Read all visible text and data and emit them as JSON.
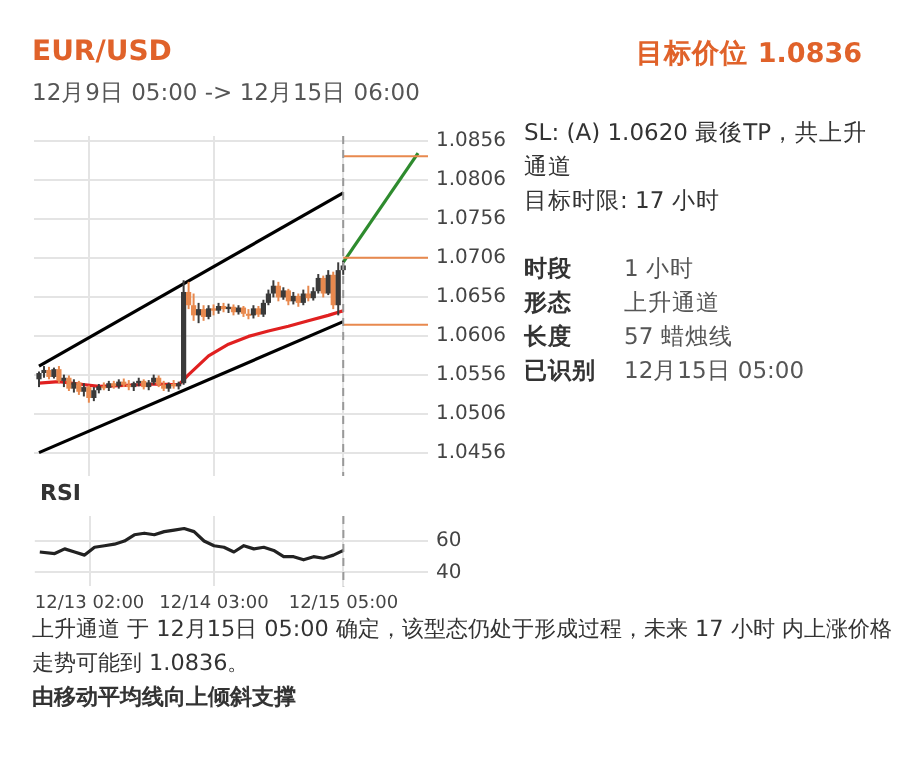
{
  "chart_data": [
    {
      "type": "candlestick",
      "title": "EUR/USD",
      "subtitle": "12月9日 05:00 -> 12月15日 06:00",
      "annotations": [
        "目标价位 1.0836",
        "SL: (A) 1.0620 最後TP，共上升通道",
        "目标时限: 17 小时",
        "时段",
        "1 小时",
        "形态",
        "上升通道",
        "长度",
        "57 蜡烛线",
        "已识别",
        "12月15日 05:00",
        "上升通道 于 12月15日 05:00 确定，该型态仍处于形成过程，未来 17 小时 内上涨价格走势可能到 1.0836。",
        "由移动平均线向上倾斜支撑"
      ],
      "x": [
        "--12-12T16:00",
        "--12-12T17:00",
        "--12-12T18:00",
        "--12-12T19:00",
        "--12-12T20:00",
        "--12-12T21:00",
        "--12-12T22:00",
        "--12-12T23:00",
        "--12-13T00:00",
        "--12-13T01:00",
        "--12-13T02:00",
        "--12-13T03:00",
        "--12-13T04:00",
        "--12-13T05:00",
        "--12-13T06:00",
        "--12-13T07:00",
        "--12-13T08:00",
        "--12-13T09:00",
        "--12-13T10:00",
        "--12-13T11:00",
        "--12-13T12:00",
        "--12-13T13:00",
        "--12-13T14:00",
        "--12-13T15:00",
        "--12-13T16:00",
        "--12-13T17:00",
        "--12-13T18:00",
        "--12-13T19:00",
        "--12-13T20:00",
        "--12-13T21:00",
        "--12-13T22:00",
        "--12-13T23:00",
        "--12-14T00:00",
        "--12-14T01:00",
        "--12-14T02:00",
        "--12-14T03:00",
        "--12-14T04:00",
        "--12-14T05:00",
        "--12-14T06:00",
        "--12-14T07:00",
        "--12-14T08:00",
        "--12-14T09:00",
        "--12-14T10:00",
        "--12-14T11:00",
        "--12-14T12:00",
        "--12-14T13:00",
        "--12-14T14:00",
        "--12-14T15:00",
        "--12-14T16:00",
        "--12-14T17:00",
        "--12-14T18:00",
        "--12-14T19:00",
        "--12-14T20:00",
        "--12-14T21:00",
        "--12-14T22:00",
        "--12-14T23:00",
        "--12-15T00:00",
        "--12-15T01:00",
        "--12-15T02:00",
        "--12-15T03:00",
        "--12-15T04:00",
        "--12-15T05:00"
      ],
      "ohlc": [
        [
          1.055,
          1.056,
          1.054,
          1.0558
        ],
        [
          1.0558,
          1.0567,
          1.0552,
          1.0562
        ],
        [
          1.0562,
          1.0566,
          1.055,
          1.0553
        ],
        [
          1.0553,
          1.0565,
          1.0551,
          1.0563
        ],
        [
          1.0563,
          1.0567,
          1.0545,
          1.0548
        ],
        [
          1.0548,
          1.0556,
          1.054,
          1.0552
        ],
        [
          1.0552,
          1.0555,
          1.0535,
          1.0538
        ],
        [
          1.0538,
          1.055,
          1.0533,
          1.0546
        ],
        [
          1.0546,
          1.0548,
          1.053,
          1.0534
        ],
        [
          1.0534,
          1.0545,
          1.0528,
          1.054
        ],
        [
          1.054,
          1.0542,
          1.052,
          1.0526
        ],
        [
          1.0526,
          1.054,
          1.0522,
          1.0536
        ],
        [
          1.0536,
          1.0544,
          1.0532,
          1.0541
        ],
        [
          1.0541,
          1.0546,
          1.0536,
          1.0539
        ],
        [
          1.0539,
          1.0548,
          1.0535,
          1.0545
        ],
        [
          1.0545,
          1.0548,
          1.0538,
          1.0541
        ],
        [
          1.0541,
          1.055,
          1.0538,
          1.0547
        ],
        [
          1.0547,
          1.0551,
          1.054,
          1.0543
        ],
        [
          1.0543,
          1.0549,
          1.0536,
          1.054
        ],
        [
          1.054,
          1.0547,
          1.0535,
          1.0545
        ],
        [
          1.0545,
          1.0552,
          1.0541,
          1.0548
        ],
        [
          1.0548,
          1.055,
          1.0537,
          1.054
        ],
        [
          1.054,
          1.0549,
          1.0536,
          1.0546
        ],
        [
          1.0546,
          1.0556,
          1.0543,
          1.0552
        ],
        [
          1.0552,
          1.0555,
          1.054,
          1.0543
        ],
        [
          1.0543,
          1.0548,
          1.0535,
          1.0538
        ],
        [
          1.0538,
          1.0546,
          1.0534,
          1.0544
        ],
        [
          1.0544,
          1.0549,
          1.0538,
          1.0541
        ],
        [
          1.0541,
          1.0547,
          1.0537,
          1.0545
        ],
        [
          1.0545,
          1.0677,
          1.0543,
          1.0662
        ],
        [
          1.0662,
          1.0675,
          1.064,
          1.0645
        ],
        [
          1.0645,
          1.066,
          1.0625,
          1.0632
        ],
        [
          1.0632,
          1.0648,
          1.0622,
          1.064
        ],
        [
          1.064,
          1.0645,
          1.0625,
          1.063
        ],
        [
          1.063,
          1.0645,
          1.0627,
          1.0641
        ],
        [
          1.0641,
          1.0646,
          1.0632,
          1.0638
        ],
        [
          1.0638,
          1.0648,
          1.0634,
          1.0644
        ],
        [
          1.0644,
          1.0648,
          1.0636,
          1.064
        ],
        [
          1.064,
          1.0647,
          1.0635,
          1.0643
        ],
        [
          1.0643,
          1.0646,
          1.0632,
          1.0636
        ],
        [
          1.0636,
          1.0645,
          1.0633,
          1.0642
        ],
        [
          1.0642,
          1.0644,
          1.063,
          1.0634
        ],
        [
          1.0634,
          1.064,
          1.0627,
          1.0632
        ],
        [
          1.0632,
          1.0645,
          1.0628,
          1.0641
        ],
        [
          1.0641,
          1.0644,
          1.063,
          1.0633
        ],
        [
          1.0633,
          1.0652,
          1.063,
          1.0648
        ],
        [
          1.0648,
          1.0665,
          1.0645,
          1.066
        ],
        [
          1.066,
          1.0677,
          1.0655,
          1.067
        ],
        [
          1.067,
          1.0675,
          1.065,
          1.0655
        ],
        [
          1.0655,
          1.0668,
          1.0652,
          1.0664
        ],
        [
          1.0664,
          1.0666,
          1.0645,
          1.065
        ],
        [
          1.065,
          1.0662,
          1.0646,
          1.0657
        ],
        [
          1.0657,
          1.066,
          1.0643,
          1.0648
        ],
        [
          1.0648,
          1.0665,
          1.0645,
          1.066
        ],
        [
          1.066,
          1.067,
          1.065,
          1.0654
        ],
        [
          1.0654,
          1.0668,
          1.0651,
          1.0663
        ],
        [
          1.0663,
          1.0685,
          1.066,
          1.068
        ],
        [
          1.068,
          1.0683,
          1.0655,
          1.066
        ],
        [
          1.066,
          1.069,
          1.0658,
          1.0684
        ],
        [
          1.0684,
          1.0688,
          1.064,
          1.0645
        ],
        [
          1.0645,
          1.07,
          1.0632,
          1.069
        ],
        [
          1.069,
          1.0702,
          1.0684,
          1.0696
        ]
      ],
      "colors": [
        "#3a3a3a",
        "#3a3a3a",
        "#e8894e",
        "#3a3a3a",
        "#e8894e",
        "#3a3a3a",
        "#e8894e",
        "#3a3a3a",
        "#e8894e",
        "#3a3a3a",
        "#e8894e",
        "#3a3a3a",
        "#3a3a3a",
        "#e8894e",
        "#3a3a3a",
        "#e8894e",
        "#3a3a3a",
        "#e8894e",
        "#e8894e",
        "#3a3a3a",
        "#3a3a3a",
        "#e8894e",
        "#3a3a3a",
        "#3a3a3a",
        "#e8894e",
        "#e8894e",
        "#3a3a3a",
        "#e8894e",
        "#3a3a3a",
        "#3a3a3a",
        "#e8894e",
        "#e8894e",
        "#3a3a3a",
        "#e8894e",
        "#3a3a3a",
        "#e8894e",
        "#3a3a3a",
        "#e8894e",
        "#3a3a3a",
        "#e8894e",
        "#3a3a3a",
        "#e8894e",
        "#e8894e",
        "#3a3a3a",
        "#e8894e",
        "#3a3a3a",
        "#3a3a3a",
        "#3a3a3a",
        "#e8894e",
        "#3a3a3a",
        "#e8894e",
        "#3a3a3a",
        "#e8894e",
        "#3a3a3a",
        "#e8894e",
        "#3a3a3a",
        "#3a3a3a",
        "#e8894e",
        "#3a3a3a",
        "#e8894e",
        "#3a3a3a",
        "#3a3a3a"
      ],
      "series": [
        {
          "type": "line",
          "color": "#e02020",
          "x": [
            "--12-12T16:00",
            "--12-12T20:00",
            "--12-13T00:00",
            "--12-13T04:00",
            "--12-13T08:00",
            "--12-13T12:00",
            "--12-13T16:00",
            "--12-13T20:00",
            "--12-13T22:00",
            "--12-14T02:00",
            "--12-14T06:00",
            "--12-14T10:00",
            "--12-14T14:00",
            "--12-14T18:00",
            "--12-14T22:00",
            "--12-15T02:00",
            "--12-15T05:00"
          ],
          "values": [
            1.0545,
            1.0547,
            1.0544,
            1.0541,
            1.0542,
            1.0543,
            1.0544,
            1.0543,
            1.0556,
            1.058,
            1.0595,
            1.0605,
            1.0612,
            1.0618,
            1.0625,
            1.0632,
            1.0638
          ]
        },
        {
          "type": "line",
          "color": "#000000",
          "x": [
            "--12-12T16:00",
            "--12-15T05:00"
          ],
          "values": [
            1.0567,
            1.0789
          ]
        },
        {
          "type": "line",
          "color": "#000000",
          "x": [
            "--12-12T16:00",
            "--12-15T05:00"
          ],
          "values": [
            1.0456,
            1.0624
          ]
        },
        {
          "type": "line",
          "color": "#2e8b2e",
          "x": [
            "--12-15T05:00",
            "--12-15T20:00"
          ],
          "values": [
            1.07,
            1.084
          ]
        }
      ],
      "xlim": [
        "--12-12T15:00",
        "--12-15T22:00"
      ],
      "xticks": [
        {
          "value": "--12-13T02:00",
          "label": null
        },
        {
          "value": "--12-14T03:00",
          "label": null
        },
        {
          "value": "--12-15T05:00",
          "label": null
        }
      ],
      "ylim": [
        1.0426,
        1.0862
      ],
      "yticks": [
        1.0456,
        1.0506,
        1.0556,
        1.0606,
        1.0656,
        1.0706,
        1.0756,
        1.0806,
        1.0856
      ],
      "grid": true,
      "tick_labels": "y",
      "marker": "none",
      "ref_lines": [
        {
          "axis": "y",
          "value": 1.0836,
          "color": "#e8894e"
        },
        {
          "axis": "y",
          "value": 1.0706,
          "color": "#e8894e"
        },
        {
          "axis": "y",
          "value": 1.062,
          "color": "#e8894e"
        },
        {
          "axis": "x",
          "value": "--12-15T05:00",
          "color": "#999999",
          "line_style": "dashed"
        }
      ]
    },
    {
      "type": "line",
      "title": "RSI",
      "series": [
        {
          "color": "#222222",
          "x": [
            "--12-12T16:00",
            "--12-12T19:00",
            "--12-12T21:00",
            "--12-12T23:00",
            "--12-13T01:00",
            "--12-13T03:00",
            "--12-13T05:00",
            "--12-13T07:00",
            "--12-13T09:00",
            "--12-13T11:00",
            "--12-13T13:00",
            "--12-13T15:00",
            "--12-13T17:00",
            "--12-13T19:00",
            "--12-13T21:00",
            "--12-13T23:00",
            "--12-14T01:00",
            "--12-14T03:00",
            "--12-14T05:00",
            "--12-14T07:00",
            "--12-14T09:00",
            "--12-14T11:00",
            "--12-14T13:00",
            "--12-14T15:00",
            "--12-14T17:00",
            "--12-14T19:00",
            "--12-14T21:00",
            "--12-14T23:00",
            "--12-15T01:00",
            "--12-15T03:00",
            "--12-15T05:00"
          ],
          "values": [
            53,
            52,
            55,
            53,
            51,
            56,
            57,
            58,
            60,
            64,
            65,
            64,
            66,
            67,
            68,
            66,
            60,
            57,
            56,
            53,
            57,
            55,
            56,
            54,
            50,
            50,
            48,
            50,
            49,
            51,
            54
          ]
        }
      ],
      "xlim": [
        "--12-12T15:00",
        "--12-15T22:00"
      ],
      "xticks": [
        {
          "value": "--12-13T02:00",
          "label": "12/13 02:00"
        },
        {
          "value": "--12-14T03:00",
          "label": "12/14 03:00"
        },
        {
          "value": "--12-15T05:00",
          "label": "12/15 05:00"
        }
      ],
      "ylim": [
        31,
        76
      ],
      "yticks": [
        40,
        60
      ],
      "grid": true,
      "marker": "none",
      "ref_lines": [
        {
          "axis": "x",
          "value": "--12-15T05:00",
          "color": "#999999",
          "line_style": "dashed"
        }
      ]
    }
  ]
}
